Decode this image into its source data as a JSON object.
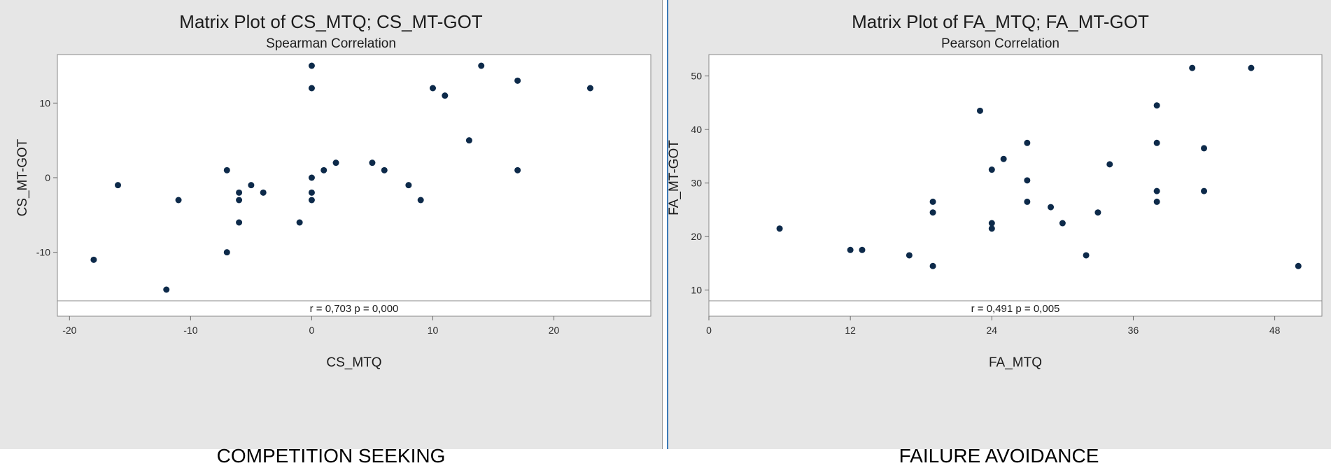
{
  "chart_data": [
    {
      "type": "scatter",
      "title": "Matrix Plot of CS_MTQ; CS_MT-GOT",
      "subtitle": "Spearman Correlation",
      "xlabel": "CS_MTQ",
      "ylabel": "CS_MT-GOT",
      "xlim": [
        -21,
        28
      ],
      "ylim": [
        -16.5,
        16.5
      ],
      "xticks": [
        -20,
        -10,
        0,
        10,
        20
      ],
      "yticks": [
        -10,
        0,
        10
      ],
      "xtick_labels": [
        "-20",
        "-10",
        "0",
        "10",
        "20"
      ],
      "ytick_labels": [
        "-10",
        "0",
        "10"
      ],
      "point_color": "#0d2a4a",
      "annotation": "r = 0,703  p = 0,000",
      "caption": "COMPETITION SEEKING",
      "points": [
        [
          -18,
          -11
        ],
        [
          -16,
          -1
        ],
        [
          -12,
          -15
        ],
        [
          -11,
          -3
        ],
        [
          -7,
          1
        ],
        [
          -7,
          -10
        ],
        [
          -6,
          -2
        ],
        [
          -6,
          -3
        ],
        [
          -6,
          -6
        ],
        [
          -5,
          -1
        ],
        [
          -4,
          -2
        ],
        [
          -1,
          -6
        ],
        [
          0,
          15
        ],
        [
          0,
          12
        ],
        [
          0,
          0
        ],
        [
          0,
          -2
        ],
        [
          0,
          -3
        ],
        [
          1,
          1
        ],
        [
          2,
          2
        ],
        [
          5,
          2
        ],
        [
          6,
          1
        ],
        [
          8,
          -1
        ],
        [
          9,
          -3
        ],
        [
          10,
          12
        ],
        [
          11,
          11
        ],
        [
          13,
          5
        ],
        [
          14,
          15
        ],
        [
          17,
          13
        ],
        [
          17,
          1
        ],
        [
          23,
          12
        ]
      ]
    },
    {
      "type": "scatter",
      "title": "Matrix Plot of FA_MTQ; FA_MT-GOT",
      "subtitle": "Pearson Correlation",
      "xlabel": "FA_MTQ",
      "ylabel": "FA_MT-GOT",
      "xlim": [
        0,
        52
      ],
      "ylim": [
        8,
        54
      ],
      "xticks": [
        0,
        12,
        24,
        36,
        48
      ],
      "yticks": [
        10,
        20,
        30,
        40,
        50
      ],
      "xtick_labels": [
        "0",
        "12",
        "24",
        "36",
        "48"
      ],
      "ytick_labels": [
        "10",
        "20",
        "30",
        "40",
        "50"
      ],
      "point_color": "#0d2a4a",
      "annotation": "r = 0,491  p = 0,005",
      "caption": "FAILURE AVOIDANCE",
      "points": [
        [
          6,
          21.5
        ],
        [
          12,
          17.5
        ],
        [
          13,
          17.5
        ],
        [
          17,
          16.5
        ],
        [
          19,
          14.5
        ],
        [
          19,
          26.5
        ],
        [
          19,
          24.5
        ],
        [
          23,
          43.5
        ],
        [
          24,
          32.5
        ],
        [
          24,
          22.5
        ],
        [
          24,
          21.5
        ],
        [
          25,
          34.5
        ],
        [
          27,
          37.5
        ],
        [
          27,
          30.5
        ],
        [
          27,
          26.5
        ],
        [
          29,
          25.5
        ],
        [
          30,
          22.5
        ],
        [
          32,
          16.5
        ],
        [
          33,
          24.5
        ],
        [
          34,
          33.5
        ],
        [
          38,
          44.5
        ],
        [
          38,
          37.5
        ],
        [
          38,
          28.5
        ],
        [
          38,
          26.5
        ],
        [
          41,
          51.5
        ],
        [
          42,
          36.5
        ],
        [
          42,
          28.5
        ],
        [
          46,
          51.5
        ],
        [
          50,
          14.5
        ]
      ]
    }
  ]
}
